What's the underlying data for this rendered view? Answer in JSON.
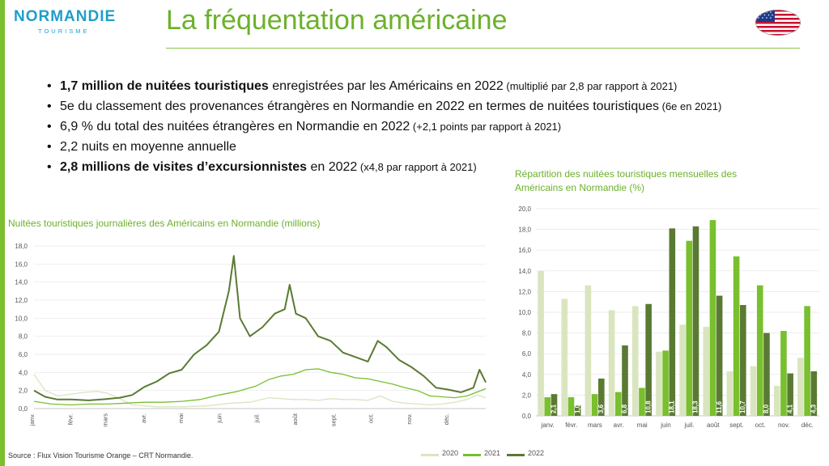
{
  "brand": {
    "name": "NORMANDIE",
    "sub": "TOURISME"
  },
  "page": {
    "title": "La fréquentation américaine",
    "flag_icon": "us-flag"
  },
  "bullets": [
    {
      "bold": "1,7 million de nuitées touristiques",
      "text": " enregistrées par les Américains en 2022",
      "small": " (multiplié par 2,8 par rapport à 2021)"
    },
    {
      "bold": "",
      "text": "5e du classement des provenances étrangères en Normandie en 2022 en termes de nuitées touristiques",
      "small": " (6e en 2021)"
    },
    {
      "bold": "",
      "text": "6,9 % du total des nuitées étrangères en Normandie en 2022",
      "small": " (+2,1 points par rapport à 2021)"
    },
    {
      "bold": "",
      "text": "2,2 nuits en moyenne annuelle",
      "small": ""
    },
    {
      "bold": "2,8 millions de visites d’excursionnistes",
      "text": " en 2022",
      "small": " (x4,8 par rapport à 2021)"
    }
  ],
  "colors": {
    "c2020": "#d9e5bf",
    "c2021": "#79bf2e",
    "c2022": "#5a7a33",
    "accent": "#6bb12b"
  },
  "legend": [
    {
      "label": "2020",
      "key": "c2020"
    },
    {
      "label": "2021",
      "key": "c2021"
    },
    {
      "label": "2022",
      "key": "c2022"
    }
  ],
  "source": "Source : Flux Vision Tourisme Orange – CRT Normandie.",
  "chart_data": [
    {
      "type": "line",
      "title": "Nuitées touristiques journalières des Américains en Normandie (millions)",
      "x_unit": "day of year",
      "x_tick_labels": [
        "janv.",
        "févr.",
        "mars",
        "avr.",
        "mai",
        "juin",
        "juil.",
        "août",
        "sept.",
        "oct.",
        "nov.",
        "déc."
      ],
      "y_ticks": [
        "0,0",
        "2,0",
        "4,0",
        "6,0",
        "8,0",
        "10,0",
        "12,0",
        "14,0",
        "16,0",
        "18,0"
      ],
      "ylim": [
        0,
        18
      ],
      "series": [
        {
          "name": "2020",
          "color_key": "c2020",
          "points": [
            [
              1,
              3.8
            ],
            [
              10,
              2.0
            ],
            [
              20,
              1.4
            ],
            [
              31,
              1.6
            ],
            [
              42,
              1.8
            ],
            [
              52,
              1.9
            ],
            [
              60,
              1.7
            ],
            [
              70,
              1.1
            ],
            [
              80,
              0.4
            ],
            [
              100,
              0.2
            ],
            [
              120,
              0.2
            ],
            [
              140,
              0.3
            ],
            [
              160,
              0.6
            ],
            [
              175,
              0.7
            ],
            [
              190,
              1.2
            ],
            [
              200,
              1.1
            ],
            [
              210,
              1.0
            ],
            [
              220,
              1.0
            ],
            [
              230,
              0.9
            ],
            [
              240,
              1.1
            ],
            [
              250,
              1.0
            ],
            [
              260,
              1.0
            ],
            [
              270,
              0.9
            ],
            [
              280,
              1.4
            ],
            [
              290,
              0.8
            ],
            [
              300,
              0.6
            ],
            [
              310,
              0.5
            ],
            [
              320,
              0.4
            ],
            [
              330,
              0.5
            ],
            [
              340,
              0.7
            ],
            [
              350,
              1.0
            ],
            [
              358,
              1.5
            ],
            [
              365,
              1.2
            ]
          ]
        },
        {
          "name": "2021",
          "color_key": "c2021",
          "points": [
            [
              1,
              0.8
            ],
            [
              15,
              0.5
            ],
            [
              31,
              0.4
            ],
            [
              45,
              0.5
            ],
            [
              60,
              0.5
            ],
            [
              75,
              0.6
            ],
            [
              90,
              0.7
            ],
            [
              105,
              0.7
            ],
            [
              120,
              0.8
            ],
            [
              135,
              1.0
            ],
            [
              150,
              1.5
            ],
            [
              165,
              1.9
            ],
            [
              180,
              2.5
            ],
            [
              190,
              3.2
            ],
            [
              200,
              3.6
            ],
            [
              210,
              3.8
            ],
            [
              220,
              4.3
            ],
            [
              230,
              4.4
            ],
            [
              240,
              4.0
            ],
            [
              250,
              3.8
            ],
            [
              260,
              3.4
            ],
            [
              270,
              3.3
            ],
            [
              280,
              3.0
            ],
            [
              290,
              2.7
            ],
            [
              300,
              2.3
            ],
            [
              310,
              2.0
            ],
            [
              320,
              1.4
            ],
            [
              330,
              1.3
            ],
            [
              340,
              1.2
            ],
            [
              350,
              1.4
            ],
            [
              365,
              2.2
            ]
          ]
        },
        {
          "name": "2022",
          "color_key": "c2022",
          "points": [
            [
              1,
              2.0
            ],
            [
              10,
              1.3
            ],
            [
              20,
              1.0
            ],
            [
              31,
              1.0
            ],
            [
              45,
              0.9
            ],
            [
              55,
              1.0
            ],
            [
              70,
              1.2
            ],
            [
              80,
              1.5
            ],
            [
              90,
              2.4
            ],
            [
              100,
              3.0
            ],
            [
              110,
              3.9
            ],
            [
              120,
              4.3
            ],
            [
              130,
              6.0
            ],
            [
              140,
              7.0
            ],
            [
              150,
              8.5
            ],
            [
              158,
              13.0
            ],
            [
              162,
              16.9
            ],
            [
              167,
              10.0
            ],
            [
              175,
              8.0
            ],
            [
              185,
              9.0
            ],
            [
              195,
              10.5
            ],
            [
              203,
              11.0
            ],
            [
              207,
              13.7
            ],
            [
              212,
              10.5
            ],
            [
              220,
              10.0
            ],
            [
              230,
              8.0
            ],
            [
              240,
              7.5
            ],
            [
              250,
              6.2
            ],
            [
              260,
              5.7
            ],
            [
              270,
              5.2
            ],
            [
              278,
              7.5
            ],
            [
              285,
              6.8
            ],
            [
              295,
              5.4
            ],
            [
              305,
              4.6
            ],
            [
              315,
              3.6
            ],
            [
              325,
              2.3
            ],
            [
              335,
              2.1
            ],
            [
              345,
              1.8
            ],
            [
              355,
              2.3
            ],
            [
              360,
              4.3
            ],
            [
              365,
              2.9
            ]
          ]
        }
      ]
    },
    {
      "type": "bar",
      "title": "Répartition des nuitées touristiques mensuelles des Américains en Normandie (%)",
      "categories": [
        "janv.",
        "févr.",
        "mars",
        "avr.",
        "mai",
        "juin",
        "juil.",
        "août",
        "sept.",
        "oct.",
        "nov.",
        "déc."
      ],
      "y_ticks": [
        "0,0",
        "2,0",
        "4,0",
        "6,0",
        "8,0",
        "10,0",
        "12,0",
        "14,0",
        "16,0",
        "18,0",
        "20,0"
      ],
      "ylim": [
        0,
        20
      ],
      "series": [
        {
          "name": "2020",
          "color_key": "c2020",
          "values": [
            14.0,
            11.3,
            12.6,
            10.2,
            10.6,
            6.2,
            8.8,
            8.6,
            4.3,
            4.8,
            2.9,
            5.6
          ]
        },
        {
          "name": "2021",
          "color_key": "c2021",
          "values": [
            1.8,
            1.8,
            2.1,
            2.3,
            2.7,
            6.3,
            16.9,
            18.9,
            15.4,
            12.6,
            8.2,
            10.6
          ]
        },
        {
          "name": "2022",
          "color_key": "c2022",
          "values": [
            2.1,
            1.0,
            3.6,
            6.8,
            10.8,
            18.1,
            18.3,
            11.6,
            10.7,
            8.0,
            4.1,
            4.3
          ],
          "data_labels": [
            "2,1",
            "1,0",
            "3,6",
            "6,8",
            "10,8",
            "18,1",
            "18,3",
            "11,6",
            "10,7",
            "8,0",
            "4,1",
            "4,3"
          ]
        }
      ]
    }
  ]
}
